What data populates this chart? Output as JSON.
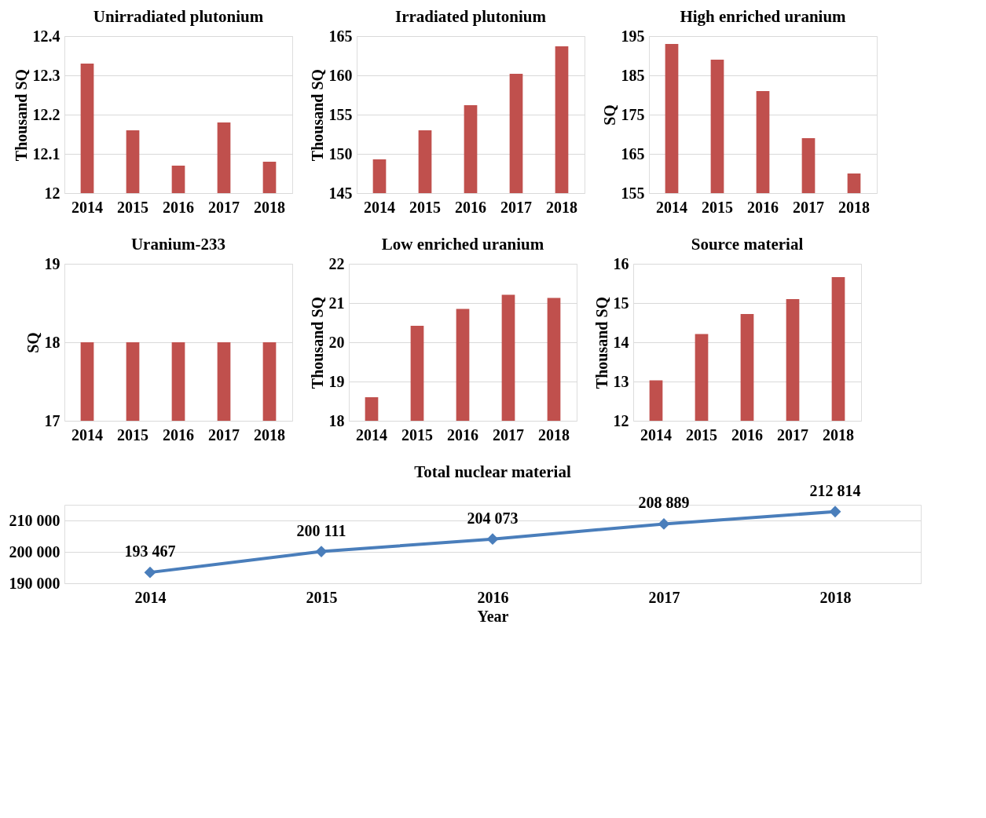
{
  "chart_data": [
    {
      "type": "bar",
      "title": "Unirradiated plutonium",
      "ylabel": "Thousand SQ",
      "categories": [
        "2014",
        "2015",
        "2016",
        "2017",
        "2018"
      ],
      "values": [
        12.33,
        12.16,
        12.07,
        12.18,
        12.08
      ],
      "color": "#c0504d",
      "ylim": [
        12,
        12.4
      ],
      "yticks": [
        12,
        12.1,
        12.2,
        12.3,
        12.4
      ],
      "grid": "y"
    },
    {
      "type": "bar",
      "title": "Irradiated plutonium",
      "ylabel": "Thousand SQ",
      "categories": [
        "2014",
        "2015",
        "2016",
        "2017",
        "2018"
      ],
      "values": [
        149.3,
        153.0,
        156.2,
        160.2,
        163.7
      ],
      "color": "#c0504d",
      "ylim": [
        145,
        165
      ],
      "yticks": [
        145,
        150,
        155,
        160,
        165
      ],
      "grid": "y"
    },
    {
      "type": "bar",
      "title": "High enriched uranium",
      "ylabel": "SQ",
      "categories": [
        "2014",
        "2015",
        "2016",
        "2017",
        "2018"
      ],
      "values": [
        193,
        189,
        181,
        169,
        160
      ],
      "color": "#c0504d",
      "ylim": [
        155,
        195
      ],
      "yticks": [
        155,
        165,
        175,
        185,
        195
      ],
      "grid": "y"
    },
    {
      "type": "bar",
      "title": "Uranium-233",
      "ylabel": "SQ",
      "categories": [
        "2014",
        "2015",
        "2016",
        "2017",
        "2018"
      ],
      "values": [
        18,
        18,
        18,
        18,
        18
      ],
      "color": "#c0504d",
      "ylim": [
        17,
        19
      ],
      "yticks": [
        17,
        18,
        19
      ],
      "grid": "y"
    },
    {
      "type": "bar",
      "title": "Low enriched uranium",
      "ylabel": "Thousand SQ",
      "categories": [
        "2014",
        "2015",
        "2016",
        "2017",
        "2018"
      ],
      "values": [
        18.6,
        20.42,
        20.85,
        21.21,
        21.13
      ],
      "color": "#c0504d",
      "ylim": [
        18,
        22
      ],
      "yticks": [
        18,
        19,
        20,
        21,
        22
      ],
      "grid": "y"
    },
    {
      "type": "bar",
      "title": "Source material",
      "ylabel": "Thousand SQ",
      "categories": [
        "2014",
        "2015",
        "2016",
        "2017",
        "2018"
      ],
      "values": [
        13.03,
        14.21,
        14.72,
        15.1,
        15.66
      ],
      "color": "#c0504d",
      "ylim": [
        12,
        16
      ],
      "yticks": [
        12,
        13,
        14,
        15,
        16
      ],
      "grid": "y"
    },
    {
      "type": "line",
      "title": "Total nuclear material",
      "xlabel": "Year",
      "categories": [
        "2014",
        "2015",
        "2016",
        "2017",
        "2018"
      ],
      "values": [
        193467,
        200111,
        204073,
        208889,
        212814
      ],
      "value_labels": [
        "193 467",
        "200 111",
        "204 073",
        "208 889",
        "212 814"
      ],
      "color": "#4a7ebb",
      "marker": "diamond",
      "ylim": [
        190000,
        215000
      ],
      "yticks": [
        {
          "value": 190000,
          "label": "190 000"
        },
        {
          "value": 200000,
          "label": "200 000"
        },
        {
          "value": 210000,
          "label": "210 000"
        }
      ],
      "grid": "y"
    }
  ]
}
